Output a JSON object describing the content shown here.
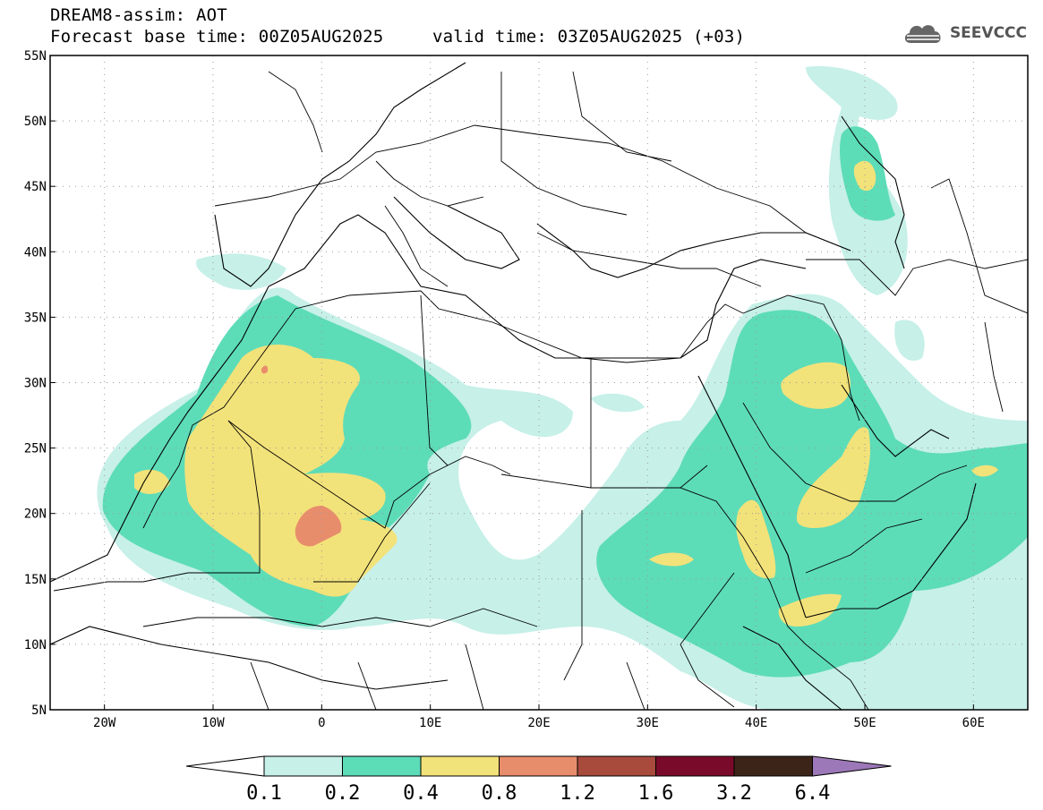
{
  "header": {
    "line1": "DREAM8-assim: AOT",
    "line2": "Forecast base time: 00Z05AUG2025",
    "line3": "valid time: 03Z05AUG2025 (+03)",
    "logo_text": "SEEVCCC",
    "logo_icon": "cloud-icon"
  },
  "map": {
    "lat_labels": [
      "55N",
      "50N",
      "45N",
      "40N",
      "35N",
      "30N",
      "25N",
      "20N",
      "15N",
      "10N",
      "5N"
    ],
    "lon_labels": [
      "20W",
      "10W",
      "0",
      "10E",
      "20E",
      "30E",
      "40E",
      "50E",
      "60E"
    ],
    "lat_values": [
      55,
      50,
      45,
      40,
      35,
      30,
      25,
      20,
      15,
      10,
      5
    ],
    "lon_values": [
      -20,
      -10,
      0,
      10,
      20,
      30,
      40,
      50,
      60
    ],
    "lon_range": [
      -25,
      65
    ],
    "lat_range": [
      5,
      55
    ]
  },
  "colorbar": {
    "labels": [
      "0.1",
      "0.2",
      "0.4",
      "0.8",
      "1.2",
      "1.6",
      "3.2",
      "6.4"
    ],
    "colors": [
      "#c6f0e8",
      "#5ddcb8",
      "#f2e27a",
      "#e88d6c",
      "#a84a3c",
      "#7a0a2a",
      "#3c2418",
      "#9c78b8"
    ],
    "under_color": "#ffffff",
    "over_color": "#9c78b8"
  }
}
